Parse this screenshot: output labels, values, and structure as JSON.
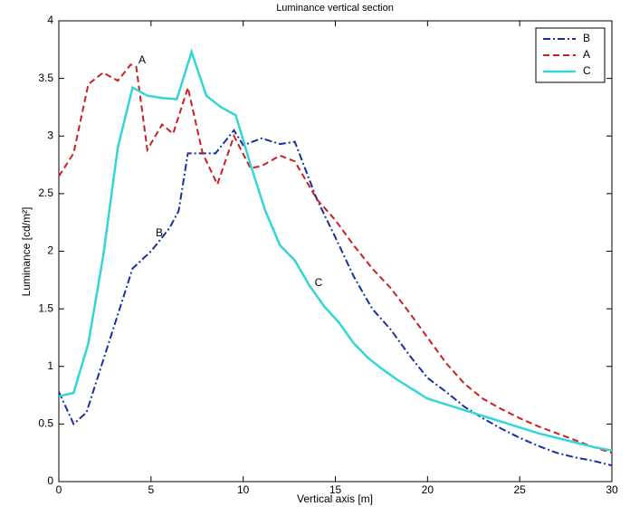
{
  "chart_data": {
    "type": "line",
    "title": "Luminance vertical section",
    "xlabel": "Vertical axis [m]",
    "ylabel": "Luminance [cd/m²]",
    "xlim": [
      0,
      30
    ],
    "ylim": [
      0,
      4
    ],
    "xticks": [
      0,
      5,
      10,
      15,
      20,
      25,
      30
    ],
    "yticks": [
      0,
      0.5,
      1,
      1.5,
      2,
      2.5,
      3,
      3.5,
      4
    ],
    "grid": false,
    "legend": "upper right",
    "annotations": [
      "A",
      "B",
      "C"
    ],
    "series": [
      {
        "name": "B",
        "color": "#1a2fa0",
        "linestyle": "dashdot",
        "x": [
          0,
          0.8,
          1.5,
          2,
          3,
          4,
          5,
          6,
          6.5,
          7,
          8,
          8.5,
          9.5,
          10,
          11,
          12,
          12.8,
          14,
          15,
          16,
          17,
          18,
          19,
          20,
          21,
          22,
          23,
          24,
          25,
          26,
          27,
          28,
          29,
          30
        ],
        "values": [
          0.78,
          0.5,
          0.6,
          0.85,
          1.35,
          1.85,
          2.0,
          2.2,
          2.35,
          2.85,
          2.85,
          2.85,
          3.05,
          2.92,
          2.98,
          2.93,
          2.95,
          2.45,
          2.12,
          1.78,
          1.5,
          1.32,
          1.1,
          0.9,
          0.78,
          0.65,
          0.55,
          0.46,
          0.38,
          0.31,
          0.25,
          0.21,
          0.18,
          0.14
        ]
      },
      {
        "name": "A",
        "color": "#cc2020",
        "linestyle": "dashed",
        "x": [
          0,
          0.8,
          1.6,
          2.4,
          3.2,
          3.9,
          4.2,
          4.8,
          5.6,
          6.2,
          7,
          7.8,
          8.6,
          9.5,
          10.4,
          11,
          12,
          12.8,
          14,
          15,
          16,
          17,
          18,
          19,
          20,
          21,
          22,
          23,
          24,
          25,
          26,
          27,
          28,
          29,
          30
        ],
        "values": [
          2.65,
          2.85,
          3.45,
          3.55,
          3.48,
          3.62,
          3.6,
          2.88,
          3.1,
          3.02,
          3.42,
          2.85,
          2.58,
          3.0,
          2.72,
          2.74,
          2.83,
          2.78,
          2.45,
          2.27,
          2.05,
          1.85,
          1.68,
          1.47,
          1.25,
          1.03,
          0.85,
          0.72,
          0.63,
          0.55,
          0.48,
          0.42,
          0.36,
          0.3,
          0.25
        ]
      },
      {
        "name": "C",
        "color": "#33d6d6",
        "linestyle": "solid",
        "x": [
          0,
          0.8,
          1.6,
          2.4,
          3.2,
          4,
          4.8,
          5.6,
          6.4,
          7.2,
          8,
          8.8,
          9.6,
          10.4,
          11.2,
          12,
          12.8,
          13.6,
          14.4,
          15.2,
          16,
          16.8,
          17.6,
          18.4,
          19.2,
          20,
          21,
          22,
          23,
          24,
          25,
          26,
          27,
          28,
          29,
          30
        ],
        "values": [
          0.74,
          0.77,
          1.2,
          1.95,
          2.9,
          3.42,
          3.35,
          3.33,
          3.32,
          3.73,
          3.35,
          3.25,
          3.18,
          2.75,
          2.35,
          2.05,
          1.92,
          1.7,
          1.52,
          1.38,
          1.2,
          1.07,
          0.97,
          0.88,
          0.8,
          0.72,
          0.67,
          0.62,
          0.57,
          0.52,
          0.47,
          0.42,
          0.38,
          0.34,
          0.3,
          0.27
        ]
      }
    ]
  }
}
